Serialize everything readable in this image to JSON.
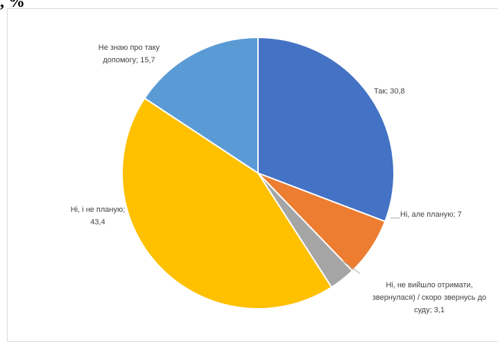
{
  "heading": ", %",
  "chart_data": {
    "type": "pie",
    "title": "",
    "start_angle_deg": 0,
    "direction": "clockwise",
    "slices": [
      {
        "label": "Так",
        "value": 30.8,
        "color": "#4472C4",
        "label_lines": [
          "Так; 30,8"
        ]
      },
      {
        "label": "Ні, але планую",
        "value": 7,
        "color": "#ED7D31",
        "label_lines": [
          "Ні, але планую; 7"
        ]
      },
      {
        "label": "Ні, не вийшло отримати, звернулася) / скоро звернусь до суду",
        "value": 3.1,
        "color": "#A5A5A5",
        "label_lines": [
          "Ні, не вийшло отримати,",
          "звернулася) / скоро звернусь до",
          "суду; 3,1"
        ]
      },
      {
        "label": "Ні, і не планую",
        "value": 43.4,
        "color": "#FFC000",
        "label_lines": [
          "Ні, і не планую;",
          "43,4"
        ]
      },
      {
        "label": "Не знаю про таку допомогу",
        "value": 15.7,
        "color": "#5B9BD5",
        "label_lines": [
          "Не знаю про таку",
          "допомогу; 15,7"
        ]
      }
    ]
  }
}
